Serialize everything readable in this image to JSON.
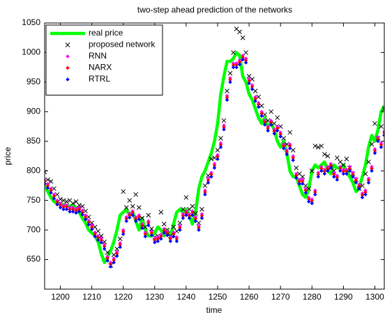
{
  "chart_data": {
    "type": "line",
    "title": "two-step ahead prediction of the networks",
    "xlabel": "time",
    "ylabel": "price",
    "xlim": [
      1195,
      1303
    ],
    "ylim": [
      600,
      1050
    ],
    "xticks": [
      1200,
      1210,
      1220,
      1230,
      1240,
      1250,
      1260,
      1270,
      1280,
      1290,
      1300
    ],
    "yticks": [
      650,
      700,
      750,
      800,
      850,
      900,
      950,
      1000,
      1050
    ],
    "legend": "upper left",
    "x": [
      1195,
      1196,
      1197,
      1198,
      1199,
      1200,
      1201,
      1202,
      1203,
      1204,
      1205,
      1206,
      1207,
      1208,
      1209,
      1210,
      1211,
      1212,
      1213,
      1214,
      1215,
      1216,
      1217,
      1218,
      1219,
      1220,
      1221,
      1222,
      1223,
      1224,
      1225,
      1226,
      1227,
      1228,
      1229,
      1230,
      1231,
      1232,
      1233,
      1234,
      1235,
      1236,
      1237,
      1238,
      1239,
      1240,
      1241,
      1242,
      1243,
      1244,
      1245,
      1246,
      1247,
      1248,
      1249,
      1250,
      1251,
      1252,
      1253,
      1254,
      1255,
      1256,
      1257,
      1258,
      1259,
      1260,
      1261,
      1262,
      1263,
      1264,
      1265,
      1266,
      1267,
      1268,
      1269,
      1270,
      1271,
      1272,
      1273,
      1274,
      1275,
      1276,
      1277,
      1278,
      1279,
      1280,
      1281,
      1282,
      1283,
      1284,
      1285,
      1286,
      1287,
      1288,
      1289,
      1290,
      1291,
      1292,
      1293,
      1294,
      1295,
      1296,
      1297,
      1298,
      1299,
      1300,
      1301,
      1302,
      1303
    ],
    "series": [
      {
        "name": "real price",
        "color": "#00ff00",
        "marker": "line",
        "values": [
          775,
          765,
          755,
          748,
          745,
          745,
          742,
          742,
          740,
          742,
          738,
          730,
          720,
          712,
          700,
          695,
          690,
          680,
          660,
          645,
          655,
          665,
          680,
          700,
          725,
          730,
          735,
          725,
          730,
          715,
          700,
          720,
          700,
          690,
          690,
          695,
          705,
          700,
          690,
          700,
          690,
          710,
          730,
          735,
          730,
          735,
          725,
          710,
          730,
          770,
          790,
          800,
          815,
          830,
          850,
          880,
          930,
          960,
          985,
          985,
          990,
          1000,
          995,
          960,
          950,
          930,
          920,
          905,
          890,
          880,
          890,
          875,
          880,
          870,
          850,
          840,
          850,
          830,
          800,
          790,
          790,
          775,
          760,
          755,
          770,
          800,
          810,
          805,
          810,
          815,
          800,
          795,
          810,
          805,
          805,
          810,
          800,
          790,
          780,
          765,
          770,
          790,
          810,
          840,
          860,
          850,
          870,
          900,
          910
        ]
      },
      {
        "name": "proposed network",
        "color": "#000000",
        "marker": "x",
        "values": [
          798,
          785,
          782,
          770,
          760,
          752,
          750,
          748,
          750,
          745,
          748,
          742,
          740,
          732,
          722,
          712,
          705,
          698,
          690,
          680,
          662,
          640,
          658,
          668,
          685,
          765,
          738,
          750,
          740,
          760,
          738,
          720,
          705,
          725,
          702,
          688,
          690,
          730,
          710,
          700,
          690,
          705,
          698,
          712,
          735,
          755,
          735,
          740,
          728,
          712,
          735,
          775,
          792,
          820,
          822,
          835,
          855,
          885,
          935,
          965,
          1000,
          1040,
          1035,
          1025,
          1000,
          960,
          955,
          935,
          925,
          910,
          895,
          885,
          900,
          880,
          890,
          875,
          855,
          845,
          865,
          835,
          805,
          795,
          790,
          775,
          770,
          800,
          842,
          840,
          842,
          828,
          825,
          805,
          800,
          822,
          815,
          810,
          820,
          805,
          795,
          785,
          770,
          775,
          795,
          815,
          845,
          880,
          855,
          875,
          905
        ]
      },
      {
        "name": "RNN",
        "color": "#ff00ff",
        "marker": "diamond",
        "values": [
          785,
          778,
          770,
          760,
          750,
          745,
          742,
          742,
          738,
          738,
          736,
          738,
          733,
          725,
          716,
          708,
          696,
          690,
          686,
          675,
          655,
          645,
          652,
          663,
          678,
          700,
          722,
          728,
          732,
          722,
          725,
          710,
          696,
          715,
          698,
          686,
          688,
          692,
          702,
          698,
          688,
          696,
          688,
          707,
          727,
          732,
          727,
          732,
          722,
          707,
          727,
          767,
          787,
          797,
          812,
          827,
          847,
          877,
          927,
          957,
          982,
          982,
          987,
          995,
          990,
          955,
          945,
          925,
          915,
          900,
          885,
          875,
          885,
          870,
          875,
          865,
          845,
          835,
          845,
          825,
          795,
          785,
          785,
          770,
          755,
          752,
          767,
          797,
          807,
          802,
          807,
          812,
          797,
          792,
          807,
          802,
          802,
          807,
          797,
          787,
          777,
          762,
          767,
          787,
          807,
          837,
          857,
          847,
          867
        ]
      },
      {
        "name": "NARX",
        "color": "#ff0000",
        "marker": "diamond",
        "values": [
          782,
          775,
          767,
          757,
          747,
          742,
          739,
          739,
          735,
          735,
          733,
          735,
          730,
          722,
          713,
          705,
          693,
          687,
          683,
          672,
          652,
          642,
          649,
          660,
          675,
          697,
          719,
          725,
          729,
          719,
          722,
          707,
          693,
          712,
          695,
          683,
          685,
          689,
          699,
          695,
          685,
          693,
          685,
          704,
          724,
          729,
          724,
          729,
          719,
          704,
          724,
          764,
          784,
          794,
          809,
          824,
          844,
          874,
          924,
          954,
          979,
          979,
          984,
          992,
          987,
          952,
          942,
          922,
          912,
          897,
          882,
          872,
          882,
          867,
          872,
          862,
          842,
          832,
          842,
          822,
          792,
          782,
          782,
          767,
          752,
          749,
          764,
          794,
          804,
          799,
          804,
          809,
          794,
          789,
          804,
          799,
          799,
          804,
          794,
          784,
          774,
          759,
          764,
          784,
          804,
          834,
          854,
          844,
          864
        ]
      },
      {
        "name": "RTRL",
        "color": "#0000ff",
        "marker": "diamond",
        "values": [
          778,
          771,
          763,
          753,
          743,
          738,
          735,
          735,
          731,
          731,
          729,
          731,
          726,
          718,
          709,
          701,
          689,
          683,
          679,
          668,
          648,
          638,
          645,
          656,
          671,
          693,
          715,
          721,
          725,
          715,
          718,
          703,
          689,
          708,
          691,
          679,
          681,
          685,
          695,
          691,
          681,
          689,
          681,
          700,
          720,
          725,
          720,
          725,
          715,
          700,
          720,
          760,
          780,
          790,
          805,
          820,
          840,
          870,
          920,
          950,
          975,
          975,
          980,
          988,
          983,
          948,
          938,
          918,
          908,
          893,
          878,
          868,
          878,
          863,
          868,
          858,
          838,
          828,
          838,
          818,
          788,
          778,
          778,
          763,
          748,
          745,
          760,
          790,
          800,
          795,
          800,
          805,
          790,
          785,
          800,
          795,
          795,
          800,
          790,
          780,
          770,
          755,
          760,
          780,
          800,
          830,
          850,
          840,
          860
        ]
      }
    ]
  }
}
